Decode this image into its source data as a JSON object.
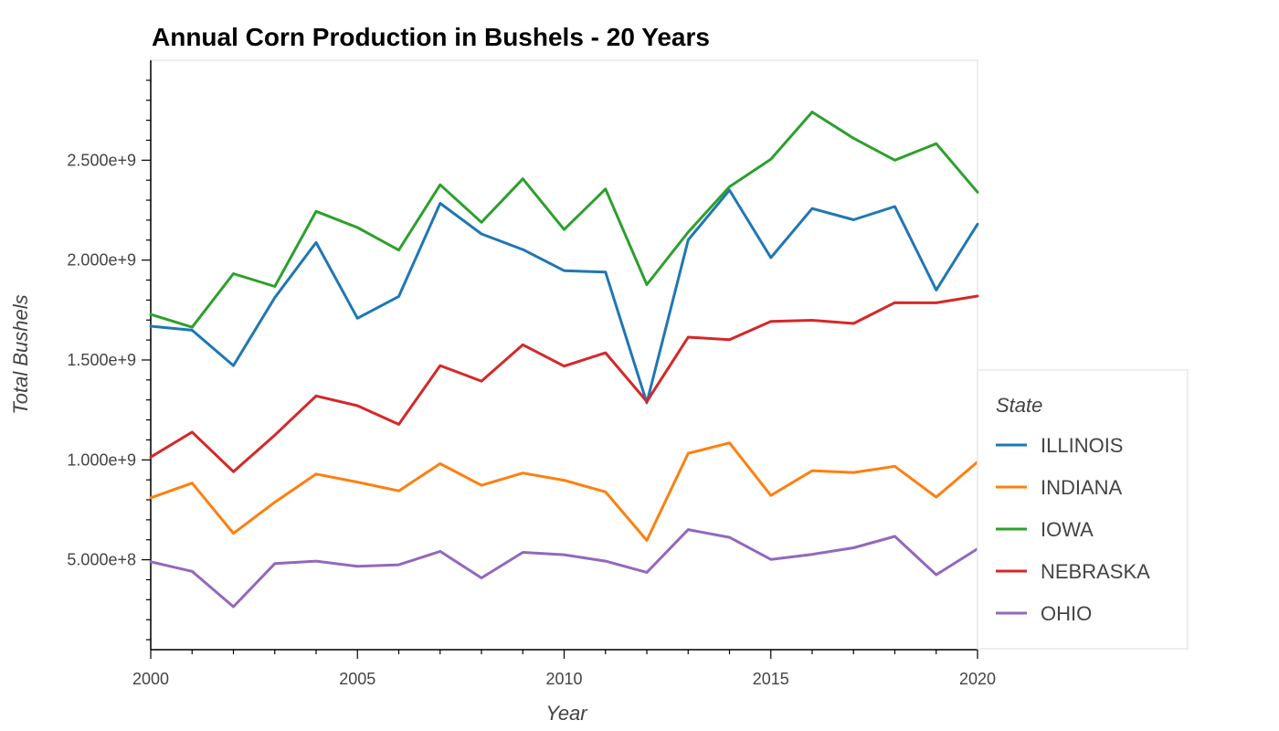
{
  "chart_data": {
    "type": "line",
    "title": "Annual Corn Production in Bushels - 20 Years",
    "xlabel": "Year",
    "ylabel": "Total Bushels",
    "xlim": [
      2000,
      2020
    ],
    "ylim": [
      50000000,
      3000000000
    ],
    "x_ticks": [
      2000,
      2005,
      2010,
      2015,
      2020
    ],
    "x_tick_labels": [
      "2000",
      "2005",
      "2010",
      "2015",
      "2020"
    ],
    "y_ticks": [
      500000000,
      1000000000,
      1500000000,
      2000000000,
      2500000000
    ],
    "y_tick_labels": [
      "5.000e+8",
      "1.000e+9",
      "1.500e+9",
      "2.000e+9",
      "2.500e+9"
    ],
    "grid": false,
    "legend": {
      "title": "State",
      "placement": "right"
    },
    "x": [
      2000,
      2001,
      2002,
      2003,
      2004,
      2005,
      2006,
      2007,
      2008,
      2009,
      2010,
      2011,
      2012,
      2013,
      2014,
      2015,
      2016,
      2017,
      2018,
      2019,
      2020
    ],
    "series": [
      {
        "name": "ILLINOIS",
        "color": "#1f77b4",
        "values": [
          1669000000,
          1649000000,
          1472000000,
          1812000000,
          2088000000,
          1709000000,
          1818000000,
          2284000000,
          2131000000,
          2053000000,
          1947000000,
          1940000000,
          1286000000,
          2101000000,
          2350000000,
          2012000000,
          2258000000,
          2202000000,
          2268000000,
          1850000000,
          2180000000
        ]
      },
      {
        "name": "INDIANA",
        "color": "#ff7f0e",
        "values": [
          810000000,
          884000000,
          632000000,
          788000000,
          929000000,
          889000000,
          845000000,
          981000000,
          873000000,
          934000000,
          898000000,
          840000000,
          597000000,
          1033000000,
          1085000000,
          822000000,
          946000000,
          937000000,
          968000000,
          814000000,
          990000000
        ]
      },
      {
        "name": "IOWA",
        "color": "#2ca02c",
        "values": [
          1728000000,
          1664000000,
          1932000000,
          1868000000,
          2244000000,
          2163000000,
          2050000000,
          2377000000,
          2189000000,
          2407000000,
          2153000000,
          2356000000,
          1877000000,
          2140000000,
          2367000000,
          2505000000,
          2741000000,
          2610000000,
          2500000000,
          2583000000,
          2340000000
        ]
      },
      {
        "name": "NEBRASKA",
        "color": "#d62728",
        "values": [
          1014000000,
          1139000000,
          941000000,
          1124000000,
          1320000000,
          1271000000,
          1178000000,
          1472000000,
          1394000000,
          1576000000,
          1469000000,
          1536000000,
          1292000000,
          1614000000,
          1602000000,
          1693000000,
          1699000000,
          1683000000,
          1787000000,
          1786000000,
          1820000000
        ]
      },
      {
        "name": "OHIO",
        "color": "#9467bd",
        "values": [
          490000000,
          442000000,
          265000000,
          481000000,
          493000000,
          467000000,
          475000000,
          542000000,
          409000000,
          537000000,
          525000000,
          493000000,
          437000000,
          651000000,
          612000000,
          502000000,
          527000000,
          560000000,
          617000000,
          425000000,
          555000000
        ]
      }
    ]
  }
}
